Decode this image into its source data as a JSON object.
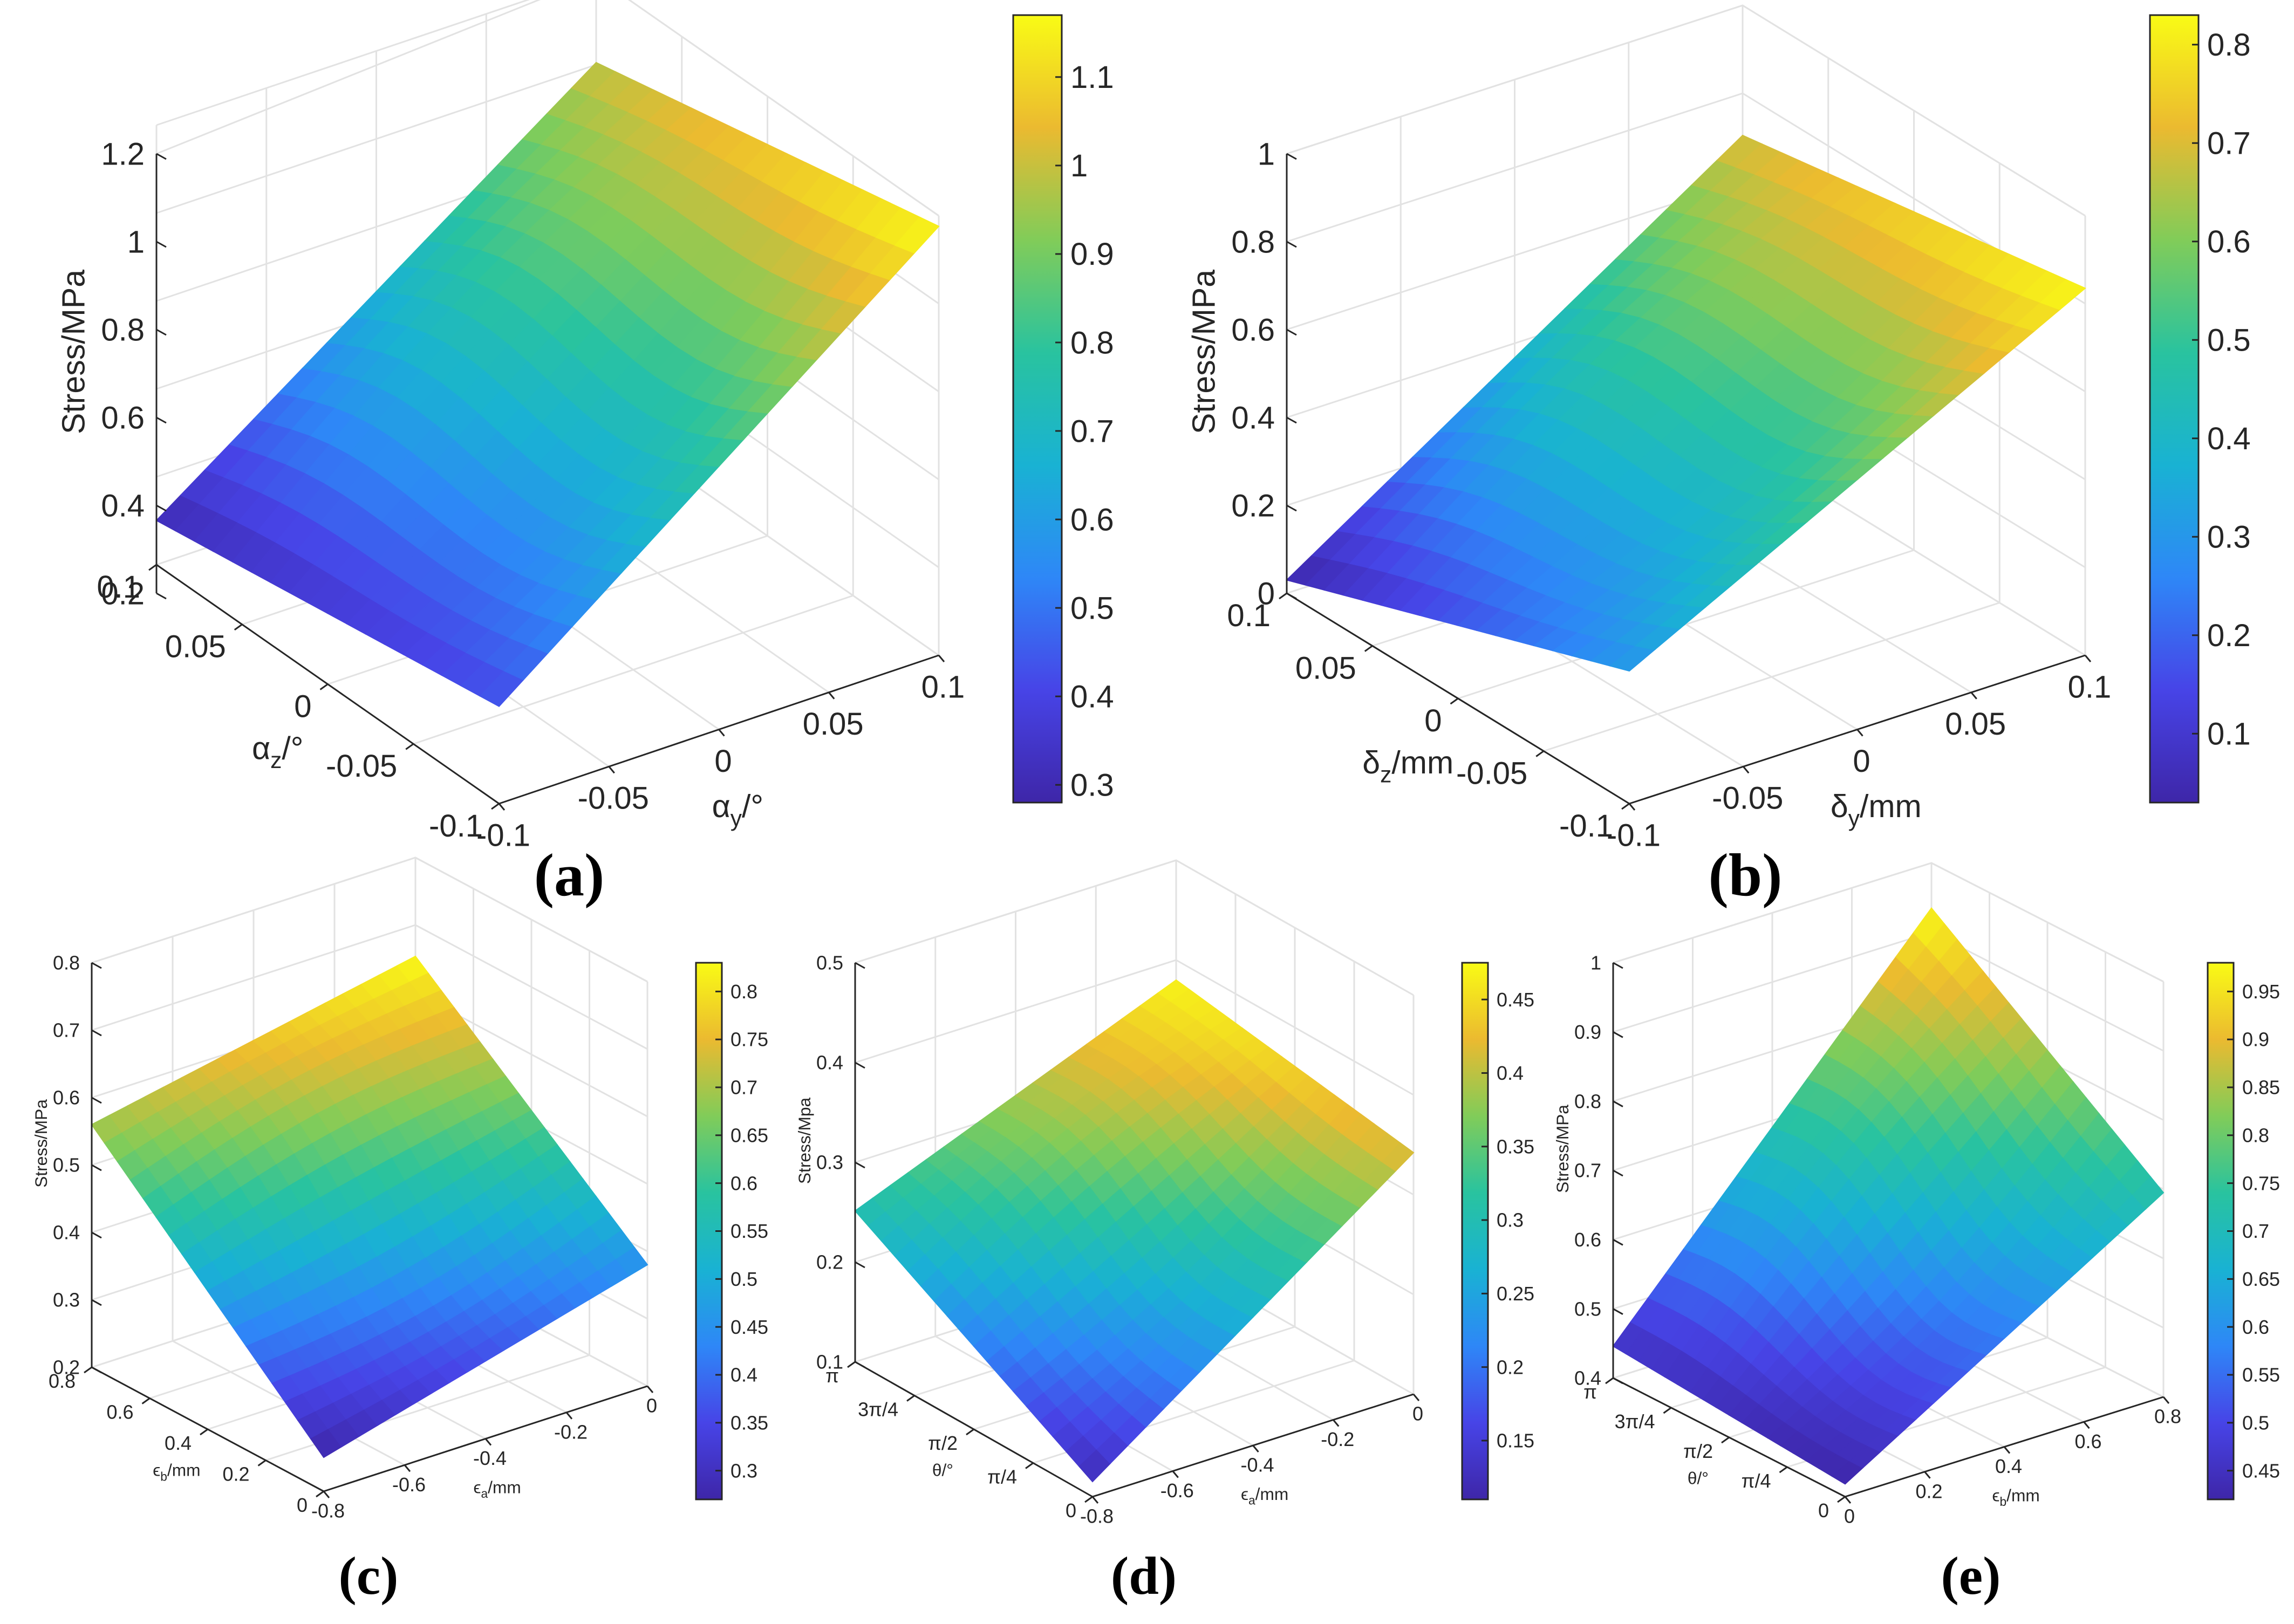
{
  "chart_data": [
    {
      "id": "a",
      "type": "surface",
      "panel_label": "(a)",
      "zlabel": "Stress/MPa",
      "zlim": [
        0.2,
        1.2
      ],
      "zticks": [
        "0.2",
        "0.4",
        "0.6",
        "0.8",
        "1",
        "1.2"
      ],
      "left_axis": {
        "label": "α_z/°",
        "ticks": [
          "0.1",
          "0.05",
          "0",
          "-0.05",
          "-0.1"
        ]
      },
      "right_axis": {
        "label": "α_y/°",
        "ticks": [
          "-0.1",
          "-0.05",
          "0",
          "0.05",
          "0.1"
        ]
      },
      "colorbar": {
        "min": 0.28,
        "max": 1.17,
        "ticks": [
          "0.3",
          "0.4",
          "0.5",
          "0.6",
          "0.7",
          "0.8",
          "0.9",
          "1",
          "1.1"
        ]
      },
      "corner_values": {
        "left": 0.3,
        "front": 0.42,
        "right": 1.17,
        "back": 1.0
      }
    },
    {
      "id": "b",
      "type": "surface",
      "panel_label": "(b)",
      "zlabel": "Stress/MPa",
      "zlim": [
        0,
        1
      ],
      "zticks": [
        "0",
        "0.2",
        "0.4",
        "0.6",
        "0.8",
        "1"
      ],
      "left_axis": {
        "label": "δ_z/mm",
        "ticks": [
          "0.1",
          "0.05",
          "0",
          "-0.05",
          "-0.1"
        ]
      },
      "right_axis": {
        "label": "δ_y/mm",
        "ticks": [
          "-0.1",
          "-0.05",
          "0",
          "0.05",
          "0.1"
        ]
      },
      "colorbar": {
        "min": 0.03,
        "max": 0.83,
        "ticks": [
          "0.1",
          "0.2",
          "0.3",
          "0.4",
          "0.5",
          "0.6",
          "0.7",
          "0.8"
        ]
      },
      "corner_values": {
        "left": 0.03,
        "front": 0.3,
        "right": 0.83,
        "back": 0.7
      }
    },
    {
      "id": "c",
      "type": "surface",
      "panel_label": "(c)",
      "zlabel": "Stress/MPa",
      "zlim": [
        0.2,
        0.8
      ],
      "zticks": [
        "0.2",
        "0.3",
        "0.4",
        "0.5",
        "0.6",
        "0.7",
        "0.8"
      ],
      "left_axis": {
        "label": "ϵ_b/mm",
        "ticks": [
          "0.8",
          "0.6",
          "0.4",
          "0.2",
          "0"
        ]
      },
      "right_axis": {
        "label": "ϵ_a/mm",
        "ticks": [
          "-0.8",
          "-0.6",
          "-0.4",
          "-0.2",
          "0"
        ]
      },
      "colorbar": {
        "min": 0.27,
        "max": 0.83,
        "ticks": [
          "0.3",
          "0.35",
          "0.4",
          "0.45",
          "0.5",
          "0.55",
          "0.6",
          "0.65",
          "0.7",
          "0.75",
          "0.8"
        ]
      },
      "corner_values": {
        "left": 0.7,
        "front": 0.27,
        "right": 0.45,
        "back": 0.83
      }
    },
    {
      "id": "d",
      "type": "surface",
      "panel_label": "(d)",
      "zlabel": "Stress/Mpa",
      "zlim": [
        0.1,
        0.5
      ],
      "zticks": [
        "0.1",
        "0.2",
        "0.3",
        "0.4",
        "0.5"
      ],
      "left_axis": {
        "label": "θ/°",
        "ticks": [
          "π",
          "3π/4",
          "π/2",
          "π/4",
          "0"
        ]
      },
      "right_axis": {
        "label": "ϵ_a/mm",
        "ticks": [
          "-0.8",
          "-0.6",
          "-0.4",
          "-0.2",
          "0"
        ]
      },
      "colorbar": {
        "min": 0.11,
        "max": 0.475,
        "ticks": [
          "0.15",
          "0.2",
          "0.25",
          "0.3",
          "0.35",
          "0.4",
          "0.45"
        ]
      },
      "corner_values": {
        "left": 0.3,
        "front": 0.12,
        "right": 0.42,
        "back": 0.47
      }
    },
    {
      "id": "e",
      "type": "surface",
      "panel_label": "(e)",
      "zlabel": "Stress/MPa",
      "zlim": [
        0.4,
        1
      ],
      "zticks": [
        "0.4",
        "0.5",
        "0.6",
        "0.7",
        "0.8",
        "0.9",
        "1"
      ],
      "left_axis": {
        "label": "θ/°",
        "ticks": [
          "π",
          "3π/4",
          "π/2",
          "π/4",
          "0"
        ]
      },
      "right_axis": {
        "label": "ϵ_b/mm",
        "ticks": [
          "0",
          "0.2",
          "0.4",
          "0.6",
          "0.8"
        ]
      },
      "colorbar": {
        "min": 0.42,
        "max": 0.98,
        "ticks": [
          "0.45",
          "0.5",
          "0.55",
          "0.6",
          "0.65",
          "0.7",
          "0.75",
          "0.8",
          "0.85",
          "0.9",
          "0.95"
        ]
      },
      "corner_values": {
        "left": 0.45,
        "front": 0.42,
        "right": 0.72,
        "back": 0.98
      }
    }
  ],
  "colormap": [
    "#3e26a8",
    "#4744e7",
    "#2e87f7",
    "#19b2d3",
    "#29c39f",
    "#81cc59",
    "#ebba30",
    "#f9fb15"
  ]
}
